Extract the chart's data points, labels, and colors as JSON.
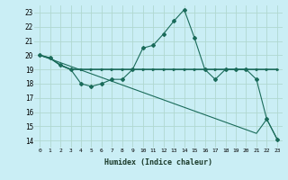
{
  "xlabel": "Humidex (Indice chaleur)",
  "bg_color": "#caeef5",
  "grid_color": "#b0d8d0",
  "line_color": "#1a6b5a",
  "xlim": [
    -0.5,
    23.5
  ],
  "ylim": [
    13.5,
    23.5
  ],
  "yticks": [
    14,
    15,
    16,
    17,
    18,
    19,
    20,
    21,
    22,
    23
  ],
  "xticks": [
    0,
    1,
    2,
    3,
    4,
    5,
    6,
    7,
    8,
    9,
    10,
    11,
    12,
    13,
    14,
    15,
    16,
    17,
    18,
    19,
    20,
    21,
    22,
    23
  ],
  "line1_x": [
    0,
    1,
    2,
    3,
    4,
    5,
    6,
    7,
    8,
    9,
    10,
    11,
    12,
    13,
    14,
    15,
    16,
    17,
    18,
    19,
    20,
    21,
    22,
    23
  ],
  "line1_y": [
    20.0,
    19.8,
    19.3,
    19.0,
    18.0,
    17.8,
    18.0,
    18.3,
    18.3,
    19.0,
    20.5,
    20.7,
    21.5,
    22.4,
    23.2,
    21.2,
    19.0,
    18.3,
    19.0,
    19.0,
    19.0,
    18.3,
    15.5,
    14.1
  ],
  "line2_x": [
    0,
    1,
    2,
    3,
    4,
    5,
    6,
    7,
    8,
    9,
    10,
    11,
    12,
    13,
    14,
    15,
    16,
    17,
    18,
    19,
    20,
    21,
    22,
    23
  ],
  "line2_y": [
    20.0,
    19.8,
    19.3,
    19.0,
    19.0,
    19.0,
    19.0,
    19.0,
    19.0,
    19.0,
    19.0,
    19.0,
    19.0,
    19.0,
    19.0,
    19.0,
    19.0,
    19.0,
    19.0,
    19.0,
    19.0,
    19.0,
    19.0,
    19.0
  ],
  "line3_x": [
    0,
    21,
    22,
    23
  ],
  "line3_y": [
    20.0,
    14.5,
    15.5,
    14.1
  ]
}
